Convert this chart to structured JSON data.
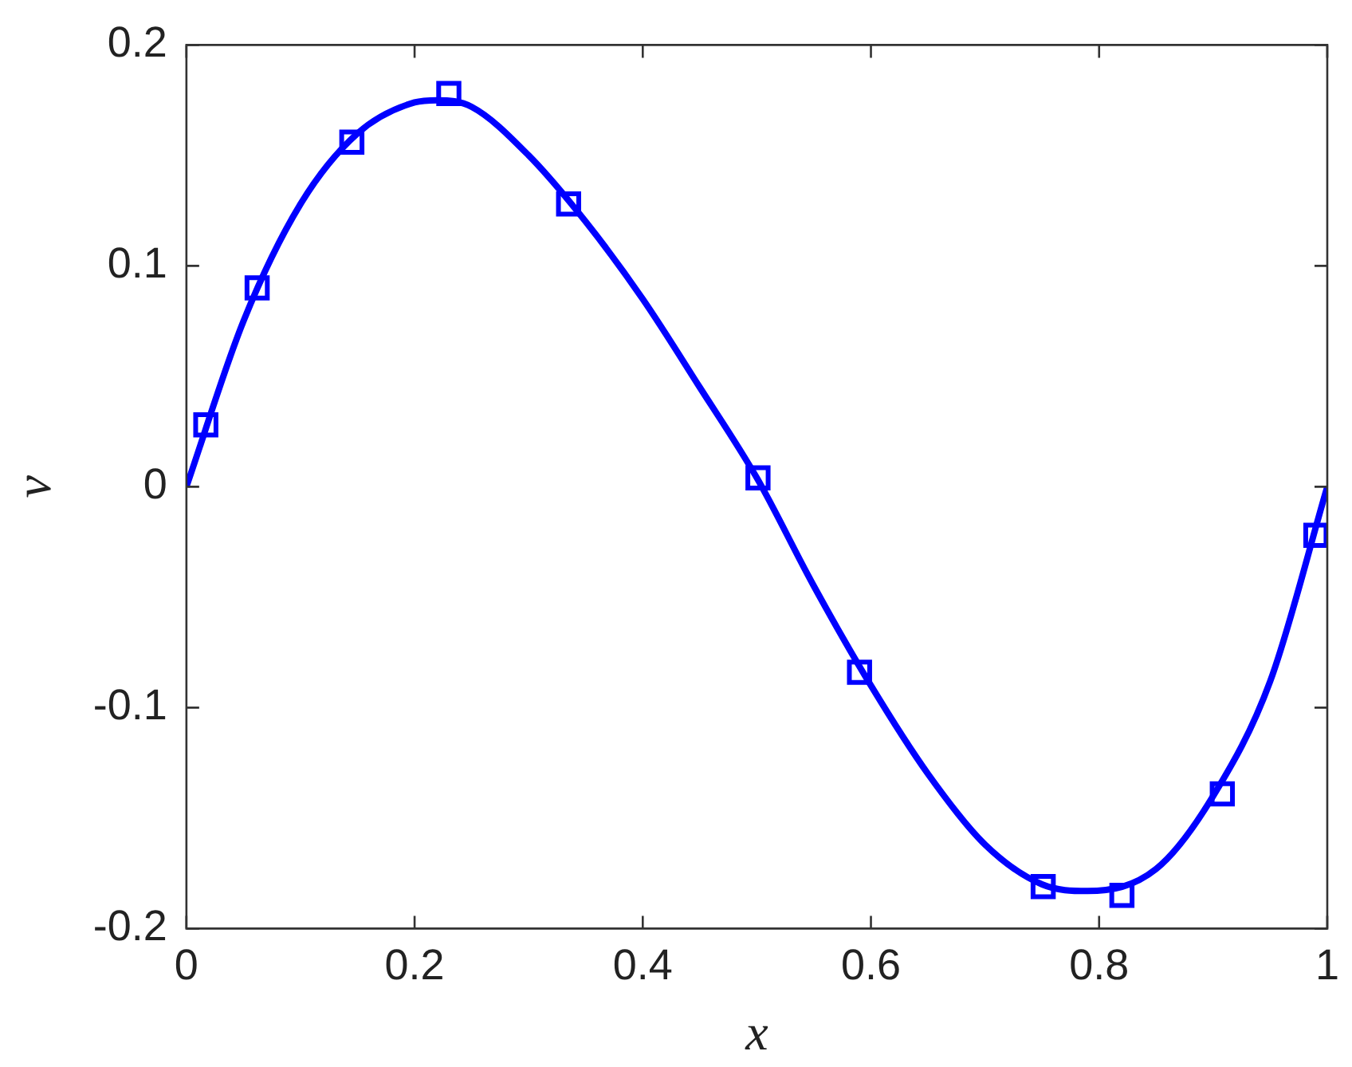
{
  "chart_data": {
    "type": "scatter",
    "xlabel": "x",
    "ylabel": "v",
    "xlim": [
      0,
      1
    ],
    "ylim": [
      -0.2,
      0.2
    ],
    "xticks": [
      0,
      0.2,
      0.4,
      0.6,
      0.8,
      1
    ],
    "yticks": [
      -0.2,
      -0.1,
      0,
      0.1,
      0.2
    ],
    "grid": false,
    "legend": false,
    "series": [
      {
        "type": "line",
        "color": "#0000ff",
        "marker": "none",
        "line_style": "solid",
        "x": [
          0,
          0.05,
          0.1,
          0.15,
          0.2,
          0.22,
          0.25,
          0.3,
          0.35,
          0.4,
          0.45,
          0.5,
          0.55,
          0.6,
          0.65,
          0.7,
          0.75,
          0.79,
          0.85,
          0.9,
          0.95,
          1
        ],
        "values": [
          0,
          0.075,
          0.128,
          0.16,
          0.174,
          0.175,
          0.172,
          0.15,
          0.12,
          0.085,
          0.045,
          0.004,
          -0.045,
          -0.09,
          -0.13,
          -0.162,
          -0.18,
          -0.183,
          -0.173,
          -0.14,
          -0.088,
          0
        ]
      },
      {
        "type": "scatter",
        "color": "#0000ff",
        "marker": "square",
        "x": [
          0.017,
          0.062,
          0.145,
          0.23,
          0.335,
          0.501,
          0.59,
          0.751,
          0.82,
          0.908,
          0.99
        ],
        "values": [
          0.028,
          0.09,
          0.156,
          0.178,
          0.128,
          0.004,
          -0.084,
          -0.181,
          -0.185,
          -0.139,
          -0.022
        ]
      }
    ]
  }
}
